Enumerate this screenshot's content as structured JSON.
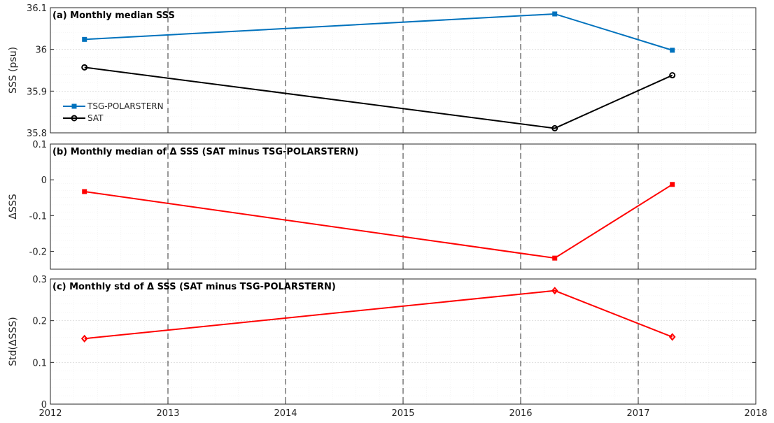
{
  "chart_data": [
    {
      "type": "line",
      "title": "(a) Monthly median SSS",
      "ylabel": "SSS (psu)",
      "xlim": [
        2012,
        2018
      ],
      "ylim": [
        35.8,
        36.1
      ],
      "x_ticks": [
        "2012",
        "2013",
        "2014",
        "2015",
        "2016",
        "2017",
        "2018"
      ],
      "y_ticks": [
        "35.8",
        "35.9",
        "36",
        "36.1"
      ],
      "grid": true,
      "legend_position": "lower-left",
      "x": [
        2012.29,
        2016.29,
        2017.29
      ],
      "series": [
        {
          "name": "TSG-POLARSTERN",
          "color": "#0072BD",
          "marker": "square",
          "values": [
            36.024,
            36.085,
            35.998
          ]
        },
        {
          "name": "SAT",
          "color": "#000000",
          "marker": "circle",
          "values": [
            35.957,
            35.811,
            35.938
          ]
        }
      ],
      "dashed_vlines": [
        2013,
        2014,
        2015,
        2016,
        2017
      ]
    },
    {
      "type": "line",
      "title": "(b) Monthly median of Δ SSS (SAT minus TSG-POLARSTERN)",
      "ylabel": "ΔSSS",
      "xlim": [
        2012,
        2018
      ],
      "ylim": [
        -0.25,
        0.1
      ],
      "x_ticks": [],
      "y_ticks": [
        "0.1",
        "0",
        "-0.1",
        "-0.2"
      ],
      "grid": true,
      "x": [
        2012.29,
        2016.29,
        2017.29
      ],
      "series": [
        {
          "color": "#FF0000",
          "marker": "square",
          "values": [
            -0.033,
            -0.219,
            -0.013
          ]
        }
      ],
      "dashed_vlines": [
        2013,
        2014,
        2015,
        2016,
        2017
      ]
    },
    {
      "type": "line",
      "title": "(c) Monthly std of Δ SSS (SAT minus TSG-POLARSTERN)",
      "ylabel": "Std(ΔSSS)",
      "xlim": [
        2012,
        2018
      ],
      "ylim": [
        0,
        0.3
      ],
      "x_ticks": [
        "2012",
        "2013",
        "2014",
        "2015",
        "2016",
        "2017",
        "2018"
      ],
      "y_ticks": [
        "0",
        "0.1",
        "0.2",
        "0.3"
      ],
      "grid": true,
      "x": [
        2012.29,
        2016.29,
        2017.29
      ],
      "series": [
        {
          "color": "#FF0000",
          "marker": "diamond",
          "values": [
            0.157,
            0.272,
            0.161
          ]
        }
      ],
      "dashed_vlines": [
        2013,
        2014,
        2015,
        2016,
        2017
      ]
    }
  ]
}
